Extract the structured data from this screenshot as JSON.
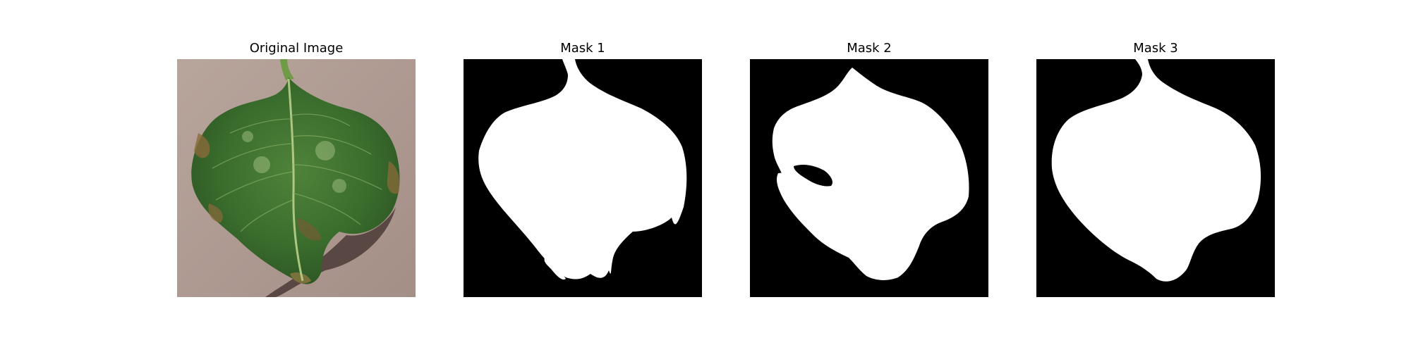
{
  "figure": {
    "panels": [
      {
        "title": "Original Image",
        "kind": "photo",
        "subject": "leaf"
      },
      {
        "title": "Mask 1",
        "kind": "mask"
      },
      {
        "title": "Mask 2",
        "kind": "mask"
      },
      {
        "title": "Mask 3",
        "kind": "mask"
      }
    ]
  },
  "colors": {
    "background": "#ffffff",
    "mask_background": "#000000",
    "mask_foreground": "#ffffff",
    "ground": "#b09d95",
    "leaf_dark": "#2f5a25",
    "leaf_mid": "#3f7330",
    "leaf_light": "#5b8a3c",
    "leaf_edge_brown": "#8a6a3a",
    "shadow": "#4a3a36"
  }
}
